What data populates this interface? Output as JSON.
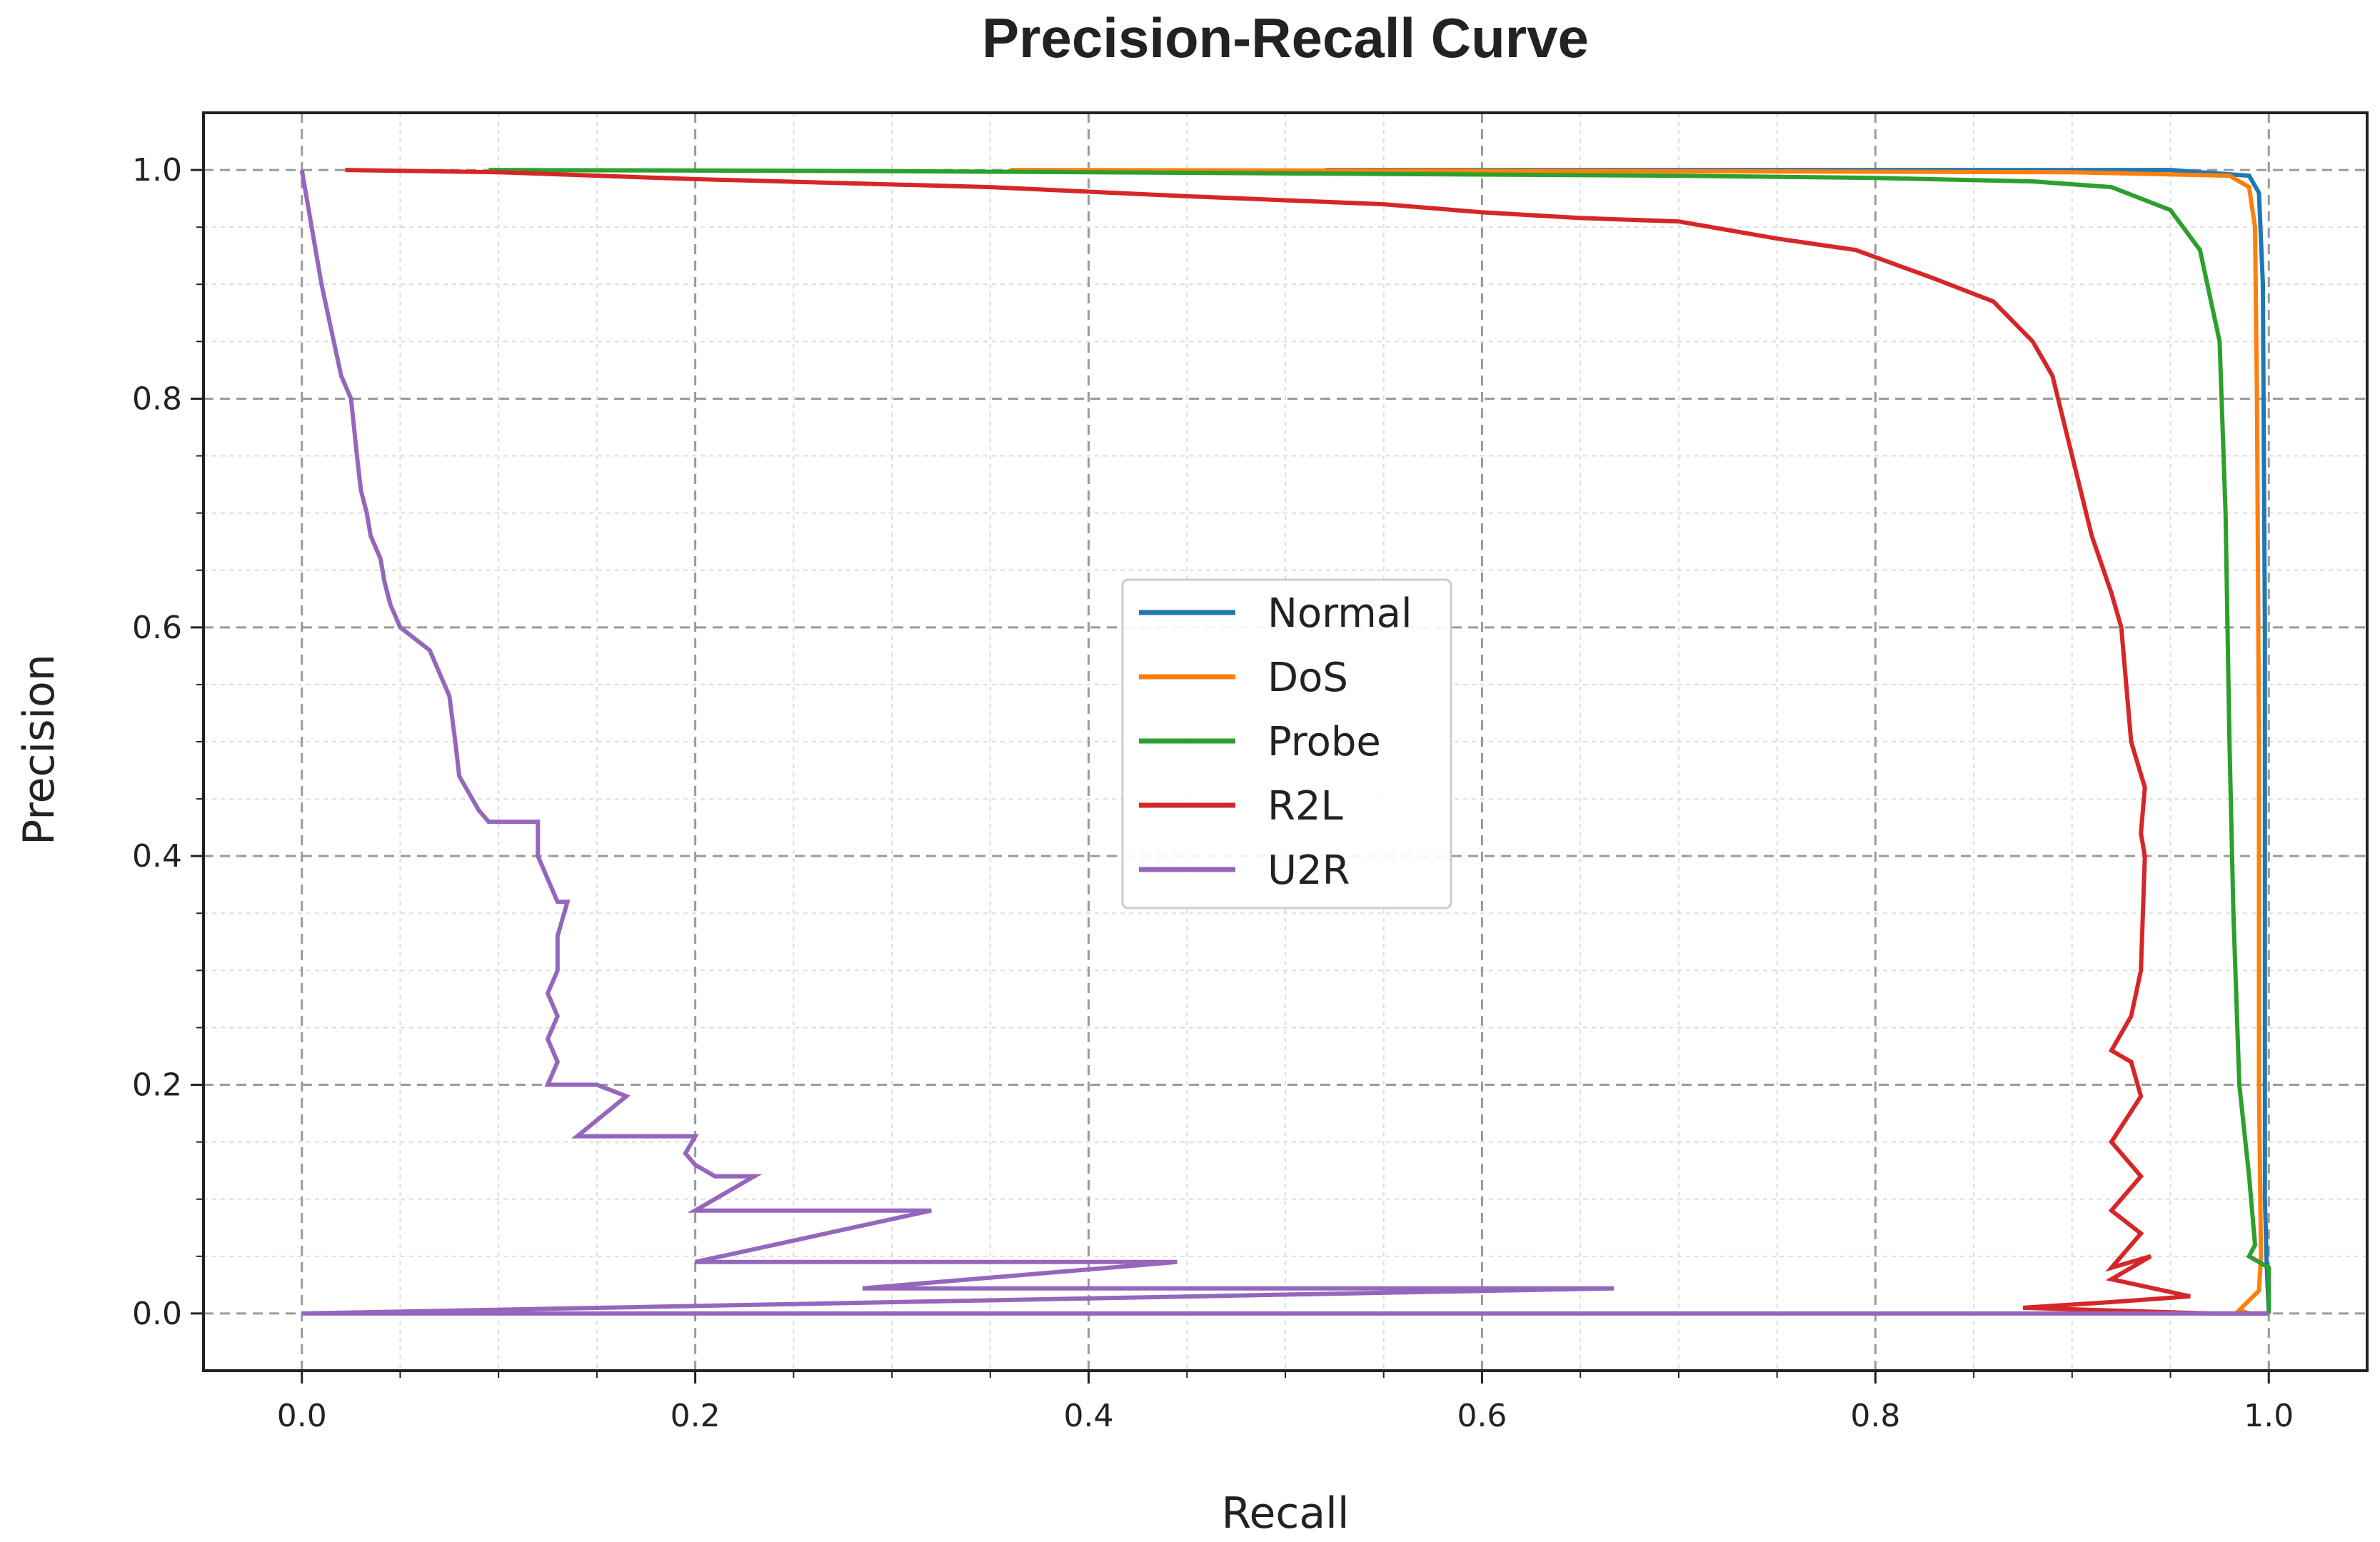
{
  "chart_data": {
    "type": "line",
    "title": "Precision-Recall Curve",
    "xlabel": "Recall",
    "ylabel": "Precision",
    "xlim": [
      -0.05,
      1.05
    ],
    "ylim": [
      -0.05,
      1.05
    ],
    "xticks": [
      0.0,
      0.2,
      0.4,
      0.6,
      0.8,
      1.0
    ],
    "xtick_labels": [
      "0.0",
      "0.2",
      "0.4",
      "0.6",
      "0.8",
      "1.0"
    ],
    "yticks": [
      0.0,
      0.2,
      0.4,
      0.6,
      0.8,
      1.0
    ],
    "ytick_labels": [
      "0.0",
      "0.2",
      "0.4",
      "0.6",
      "0.8",
      "1.0"
    ],
    "grid": true,
    "legend_position": "center",
    "series": [
      {
        "name": "Normal",
        "color": "#1f77b4",
        "points": [
          [
            0.52,
            1.0
          ],
          [
            0.8,
            1.0
          ],
          [
            0.95,
            1.0
          ],
          [
            0.99,
            0.995
          ],
          [
            0.995,
            0.98
          ],
          [
            0.997,
            0.9
          ],
          [
            0.998,
            0.6
          ],
          [
            0.998,
            0.3
          ],
          [
            0.998,
            0.1
          ],
          [
            0.999,
            0.04
          ],
          [
            1.0,
            0.0
          ]
        ]
      },
      {
        "name": "DoS",
        "color": "#ff7f0e",
        "points": [
          [
            0.36,
            1.0
          ],
          [
            0.7,
            0.999
          ],
          [
            0.9,
            0.998
          ],
          [
            0.98,
            0.995
          ],
          [
            0.99,
            0.985
          ],
          [
            0.993,
            0.95
          ],
          [
            0.994,
            0.8
          ],
          [
            0.995,
            0.5
          ],
          [
            0.995,
            0.2
          ],
          [
            0.996,
            0.05
          ],
          [
            0.995,
            0.02
          ],
          [
            0.985,
            0.003
          ],
          [
            0.99,
            0.0
          ],
          [
            1.0,
            0.0
          ]
        ]
      },
      {
        "name": "Probe",
        "color": "#2ca02c",
        "points": [
          [
            0.095,
            1.0
          ],
          [
            0.3,
            0.999
          ],
          [
            0.5,
            0.997
          ],
          [
            0.7,
            0.995
          ],
          [
            0.8,
            0.993
          ],
          [
            0.88,
            0.99
          ],
          [
            0.92,
            0.985
          ],
          [
            0.95,
            0.965
          ],
          [
            0.965,
            0.93
          ],
          [
            0.975,
            0.85
          ],
          [
            0.978,
            0.7
          ],
          [
            0.98,
            0.5
          ],
          [
            0.982,
            0.35
          ],
          [
            0.985,
            0.2
          ],
          [
            0.99,
            0.12
          ],
          [
            0.993,
            0.06
          ],
          [
            0.99,
            0.05
          ],
          [
            1.0,
            0.04
          ],
          [
            1.0,
            0.0
          ]
        ]
      },
      {
        "name": "R2L",
        "color": "#d62728",
        "points": [
          [
            0.022,
            1.0
          ],
          [
            0.1,
            0.998
          ],
          [
            0.2,
            0.992
          ],
          [
            0.35,
            0.985
          ],
          [
            0.45,
            0.977
          ],
          [
            0.55,
            0.97
          ],
          [
            0.6,
            0.963
          ],
          [
            0.65,
            0.958
          ],
          [
            0.7,
            0.955
          ],
          [
            0.75,
            0.94
          ],
          [
            0.79,
            0.93
          ],
          [
            0.83,
            0.905
          ],
          [
            0.86,
            0.885
          ],
          [
            0.88,
            0.85
          ],
          [
            0.89,
            0.82
          ],
          [
            0.9,
            0.75
          ],
          [
            0.91,
            0.68
          ],
          [
            0.92,
            0.63
          ],
          [
            0.925,
            0.6
          ],
          [
            0.93,
            0.5
          ],
          [
            0.937,
            0.46
          ],
          [
            0.935,
            0.42
          ],
          [
            0.937,
            0.4
          ],
          [
            0.935,
            0.3
          ],
          [
            0.93,
            0.26
          ],
          [
            0.92,
            0.23
          ],
          [
            0.93,
            0.22
          ],
          [
            0.935,
            0.19
          ],
          [
            0.92,
            0.15
          ],
          [
            0.935,
            0.12
          ],
          [
            0.92,
            0.09
          ],
          [
            0.935,
            0.07
          ],
          [
            0.92,
            0.04
          ],
          [
            0.94,
            0.05
          ],
          [
            0.92,
            0.03
          ],
          [
            0.96,
            0.015
          ],
          [
            0.92,
            0.01
          ],
          [
            0.875,
            0.005
          ],
          [
            0.97,
            0.0
          ],
          [
            1.0,
            0.0
          ]
        ]
      },
      {
        "name": "U2R",
        "color": "#9467bd",
        "points": [
          [
            0.0,
            1.0
          ],
          [
            0.005,
            0.95
          ],
          [
            0.01,
            0.9
          ],
          [
            0.015,
            0.86
          ],
          [
            0.02,
            0.82
          ],
          [
            0.025,
            0.8
          ],
          [
            0.028,
            0.75
          ],
          [
            0.03,
            0.72
          ],
          [
            0.033,
            0.7
          ],
          [
            0.035,
            0.68
          ],
          [
            0.04,
            0.66
          ],
          [
            0.042,
            0.64
          ],
          [
            0.045,
            0.62
          ],
          [
            0.05,
            0.6
          ],
          [
            0.065,
            0.58
          ],
          [
            0.07,
            0.56
          ],
          [
            0.075,
            0.54
          ],
          [
            0.078,
            0.5
          ],
          [
            0.08,
            0.47
          ],
          [
            0.09,
            0.44
          ],
          [
            0.095,
            0.43
          ],
          [
            0.12,
            0.43
          ],
          [
            0.12,
            0.4
          ],
          [
            0.125,
            0.38
          ],
          [
            0.13,
            0.36
          ],
          [
            0.135,
            0.36
          ],
          [
            0.13,
            0.33
          ],
          [
            0.13,
            0.3
          ],
          [
            0.125,
            0.28
          ],
          [
            0.13,
            0.26
          ],
          [
            0.125,
            0.24
          ],
          [
            0.13,
            0.22
          ],
          [
            0.125,
            0.2
          ],
          [
            0.15,
            0.2
          ],
          [
            0.165,
            0.19
          ],
          [
            0.14,
            0.155
          ],
          [
            0.2,
            0.155
          ],
          [
            0.195,
            0.14
          ],
          [
            0.2,
            0.13
          ],
          [
            0.21,
            0.12
          ],
          [
            0.23,
            0.12
          ],
          [
            0.2,
            0.09
          ],
          [
            0.32,
            0.09
          ],
          [
            0.2,
            0.045
          ],
          [
            0.445,
            0.045
          ],
          [
            0.285,
            0.022
          ],
          [
            0.667,
            0.022
          ],
          [
            0.0,
            0.0
          ],
          [
            1.0,
            0.0
          ]
        ]
      }
    ]
  }
}
